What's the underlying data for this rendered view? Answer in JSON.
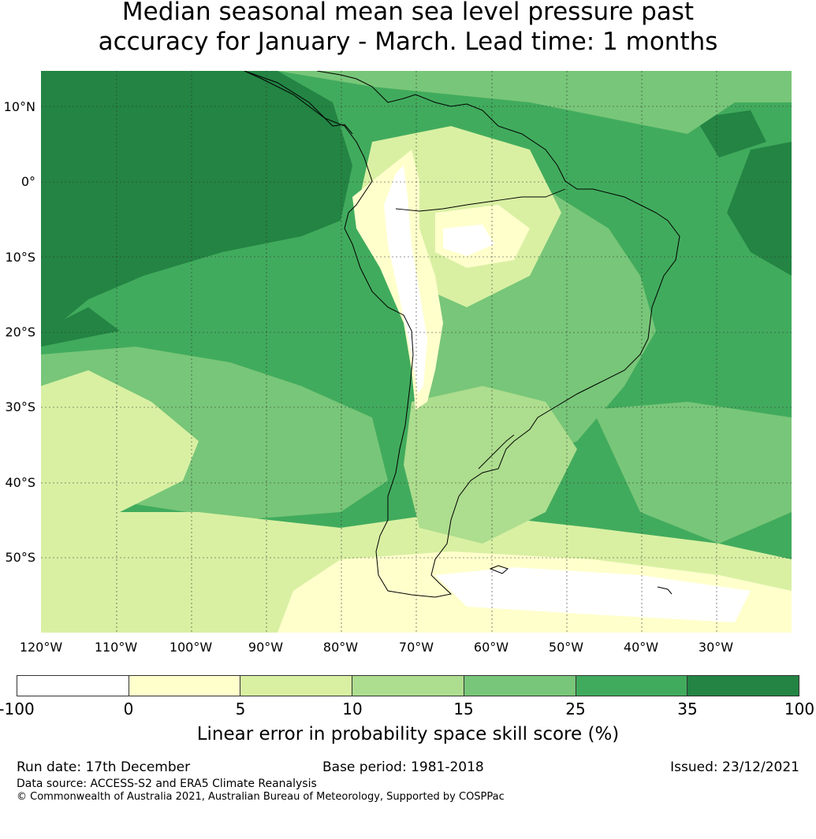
{
  "title": {
    "line1": "Median seasonal mean sea level pressure past",
    "line2": "accuracy for January - March. Lead time: 1 months"
  },
  "map": {
    "lat_labels": [
      "10°N",
      "0°",
      "10°S",
      "20°S",
      "30°S",
      "40°S",
      "50°S"
    ],
    "lon_labels": [
      "120°W",
      "110°W",
      "100°W",
      "90°W",
      "80°W",
      "70°W",
      "60°W",
      "50°W",
      "40°W",
      "30°W"
    ],
    "ocean_color": "#238443",
    "land_outline_color": "#000000"
  },
  "colorbar": {
    "colors": [
      "#ffffff",
      "#ffffcc",
      "#d9f0a3",
      "#addd8e",
      "#78c679",
      "#41ab5d",
      "#238443"
    ],
    "ticks": [
      "-100",
      "0",
      "5",
      "10",
      "15",
      "25",
      "35",
      "100"
    ],
    "label": "Linear error in probability space skill score (%)"
  },
  "footer": {
    "run_date": "Run date: 17th December",
    "base_period": "Base period: 1981-2018",
    "issued": "Issued: 23/12/2021",
    "data_source": "Data source: ACCESS-S2 and ERA5 Climate Reanalysis",
    "copyright": "© Commonwealth of Australia 2021, Australian Bureau of Meteorology, Supported by COSPPac"
  }
}
